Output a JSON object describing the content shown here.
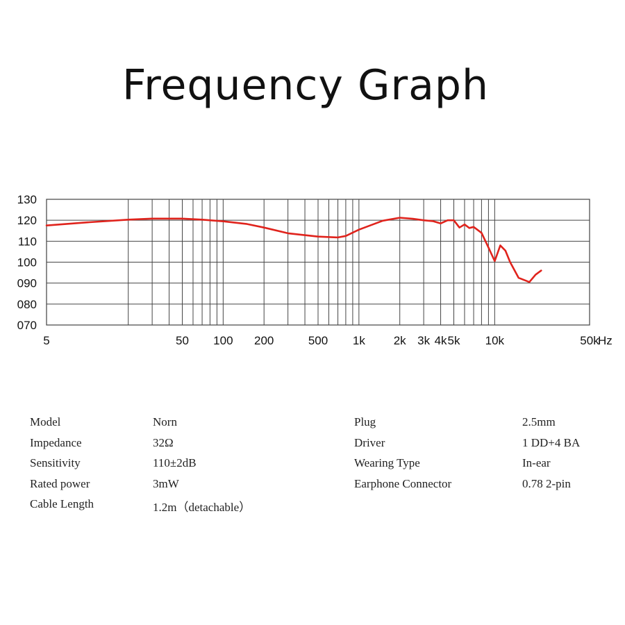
{
  "chart_data": {
    "type": "line",
    "title": "Frequency Graph",
    "xlabel": "Hz",
    "ylabel": "",
    "x_scale": "log",
    "xlim": [
      5,
      50000
    ],
    "ylim": [
      70,
      130
    ],
    "grid": true,
    "x_ticks": [
      {
        "value": 5,
        "label": "5"
      },
      {
        "value": 50,
        "label": "50"
      },
      {
        "value": 100,
        "label": "100"
      },
      {
        "value": 200,
        "label": "200"
      },
      {
        "value": 500,
        "label": "500"
      },
      {
        "value": 1000,
        "label": "1k"
      },
      {
        "value": 2000,
        "label": "2k"
      },
      {
        "value": 3000,
        "label": "3k"
      },
      {
        "value": 4000,
        "label": "4k"
      },
      {
        "value": 5000,
        "label": "5k"
      },
      {
        "value": 10000,
        "label": "10k"
      },
      {
        "value": 50000,
        "label": "50k"
      }
    ],
    "y_ticks": [
      {
        "value": 130,
        "label": "130"
      },
      {
        "value": 120,
        "label": "120"
      },
      {
        "value": 110,
        "label": "110"
      },
      {
        "value": 100,
        "label": "100"
      },
      {
        "value": 90,
        "label": "090"
      },
      {
        "value": 80,
        "label": "080"
      },
      {
        "value": 70,
        "label": "070"
      }
    ],
    "x_gridlines": [
      5,
      20,
      30,
      40,
      50,
      60,
      70,
      80,
      90,
      100,
      200,
      300,
      400,
      500,
      600,
      700,
      800,
      900,
      1000,
      2000,
      3000,
      4000,
      5000,
      6000,
      7000,
      8000,
      9000,
      10000,
      50000
    ],
    "line_color": "#e0231c",
    "series": [
      {
        "x": [
          5,
          10,
          20,
          30,
          50,
          70,
          100,
          150,
          200,
          300,
          500,
          700,
          800,
          1000,
          1500,
          2000,
          2500,
          3000,
          3500,
          4000,
          4500,
          5000,
          5500,
          6000,
          6500,
          7000,
          8000,
          9000,
          10000,
          11000,
          12000,
          13000,
          15000,
          18000,
          20000,
          22000
        ],
        "y": [
          117.5,
          119,
          120.3,
          120.8,
          120.8,
          120.3,
          119.5,
          118.2,
          116.5,
          113.8,
          112.2,
          111.8,
          112.5,
          115.5,
          119.8,
          121.2,
          120.7,
          120,
          119.6,
          118.5,
          120,
          120,
          116.5,
          118,
          116.3,
          116.8,
          114,
          107,
          100.5,
          108,
          105.5,
          100,
          92.5,
          90.5,
          94,
          96
        ]
      }
    ]
  },
  "specs": {
    "left": [
      {
        "label": "Model",
        "value": "Norn"
      },
      {
        "label": "Impedance",
        "value": "32Ω"
      },
      {
        "label": "Sensitivity",
        "value": "110±2dB"
      },
      {
        "label": "Rated power",
        "value": "3mW"
      },
      {
        "label": "Cable Length",
        "value": "1.2m（detachable）"
      }
    ],
    "right": [
      {
        "label": "Plug",
        "value": "2.5mm"
      },
      {
        "label": "Driver",
        "value": "1 DD+4 BA"
      },
      {
        "label": "Wearing Type",
        "value": "In-ear"
      },
      {
        "label": "Earphone Connector",
        "value": "0.78 2-pin"
      }
    ]
  }
}
